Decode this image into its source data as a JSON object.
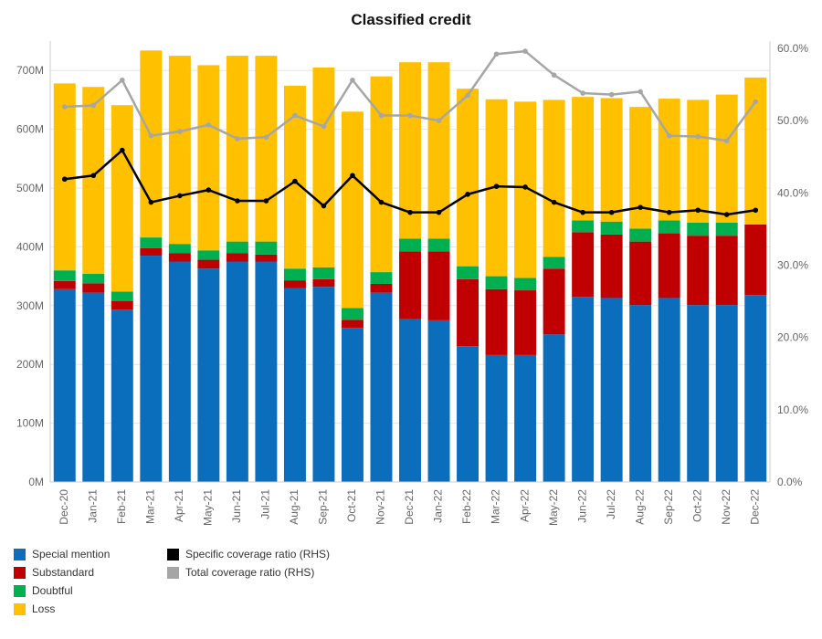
{
  "chart_data": {
    "type": "bar",
    "title": "Classified credit",
    "categories": [
      "Dec-20",
      "Jan-21",
      "Feb-21",
      "Mar-21",
      "Apr-21",
      "May-21",
      "Jun-21",
      "Jul-21",
      "Aug-21",
      "Sep-21",
      "Oct-21",
      "Nov-21",
      "Dec-21",
      "Jan-22",
      "Feb-22",
      "Mar-22",
      "Apr-22",
      "May-22",
      "Jun-22",
      "Jul-22",
      "Aug-22",
      "Sep-22",
      "Oct-22",
      "Nov-22",
      "Dec-22"
    ],
    "stacked": true,
    "y_left": {
      "ylim": [
        0,
        750
      ],
      "ticks": [
        0,
        100,
        200,
        300,
        400,
        500,
        600,
        700
      ],
      "tick_labels": [
        "0M",
        "100M",
        "200M",
        "300M",
        "400M",
        "500M",
        "600M",
        "700M"
      ]
    },
    "y_right": {
      "ylim": [
        0,
        61
      ],
      "ticks": [
        0,
        10,
        20,
        30,
        40,
        50,
        60
      ],
      "tick_labels": [
        "0.0%",
        "10.0%",
        "20.0%",
        "30.0%",
        "40.0%",
        "50.0%",
        "60.0%"
      ]
    },
    "series": [
      {
        "name": "Special mention",
        "axis": "left",
        "color": "#0a6ebd",
        "values": [
          328,
          322,
          293,
          385,
          375,
          363,
          375,
          375,
          330,
          332,
          262,
          322,
          277,
          275,
          231,
          216,
          216,
          251,
          315,
          313,
          301,
          313,
          301,
          301,
          318
        ]
      },
      {
        "name": "Substandard",
        "axis": "left",
        "color": "#c00000",
        "values": [
          14,
          16,
          15,
          13,
          14,
          15,
          14,
          12,
          13,
          13,
          14,
          15,
          115,
          117,
          114,
          112,
          110,
          112,
          110,
          108,
          108,
          110,
          118,
          118,
          120
        ]
      },
      {
        "name": "Doubtful",
        "axis": "left",
        "color": "#00b050",
        "values": [
          18,
          16,
          16,
          18,
          16,
          16,
          20,
          22,
          20,
          20,
          20,
          20,
          22,
          22,
          22,
          22,
          21,
          20,
          20,
          22,
          22,
          22,
          22,
          22,
          0
        ]
      },
      {
        "name": "Loss",
        "axis": "left",
        "color": "#ffc000",
        "values": [
          318,
          318,
          317,
          318,
          320,
          315,
          316,
          316,
          311,
          340,
          334,
          333,
          300,
          300,
          302,
          301,
          300,
          267,
          210,
          210,
          207,
          207,
          209,
          218,
          250
        ]
      },
      {
        "name": "Specific coverage ratio (RHS)",
        "type": "line",
        "axis": "right",
        "color": "#000000",
        "values": [
          41.9,
          42.4,
          45.9,
          38.7,
          39.6,
          40.4,
          38.9,
          38.9,
          41.6,
          38.2,
          42.4,
          38.7,
          37.3,
          37.3,
          39.8,
          40.9,
          40.8,
          38.7,
          37.3,
          37.3,
          38.0,
          37.3,
          37.6,
          37.0,
          37.6
        ]
      },
      {
        "name": "Total coverage ratio (RHS)",
        "type": "line",
        "axis": "right",
        "color": "#a6a6a6",
        "values": [
          51.9,
          52.1,
          55.6,
          47.9,
          48.5,
          49.4,
          47.5,
          47.7,
          50.7,
          49.2,
          55.6,
          50.7,
          50.7,
          50.0,
          53.5,
          59.2,
          59.6,
          56.3,
          53.8,
          53.6,
          54.0,
          47.9,
          47.8,
          47.2,
          52.6
        ]
      }
    ],
    "legend_position": "bottom-left",
    "grid": true
  }
}
